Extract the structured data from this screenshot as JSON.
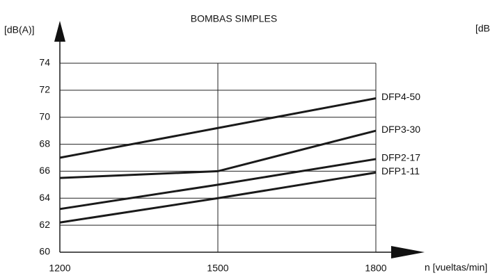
{
  "chart_data": {
    "type": "line",
    "title": "BOMBAS SIMPLES",
    "y_label": "[dB(A)]",
    "x_label": "n [vueltas/min]",
    "annotations": [
      "[dB"
    ],
    "x": [
      1200,
      1500,
      1800
    ],
    "series": [
      {
        "name": "DFP4-50",
        "color": "#1a1a1a",
        "values": [
          67,
          69.2,
          71.4
        ]
      },
      {
        "name": "DFP3-30",
        "color": "#1a1a1a",
        "values": [
          65.5,
          66,
          69
        ]
      },
      {
        "name": "DFP2-17",
        "color": "#1a1a1a",
        "values": [
          63.2,
          65,
          66.9
        ]
      },
      {
        "name": "DFP1-11",
        "color": "#1a1a1a",
        "values": [
          62.2,
          64,
          65.9
        ]
      }
    ],
    "xlim": [
      1200,
      1800
    ],
    "xticks": [
      1200,
      1500,
      1800
    ],
    "ylim": [
      60,
      74
    ],
    "yticks": [
      60,
      62,
      64,
      66,
      68,
      70,
      72,
      74
    ],
    "grid": true
  }
}
